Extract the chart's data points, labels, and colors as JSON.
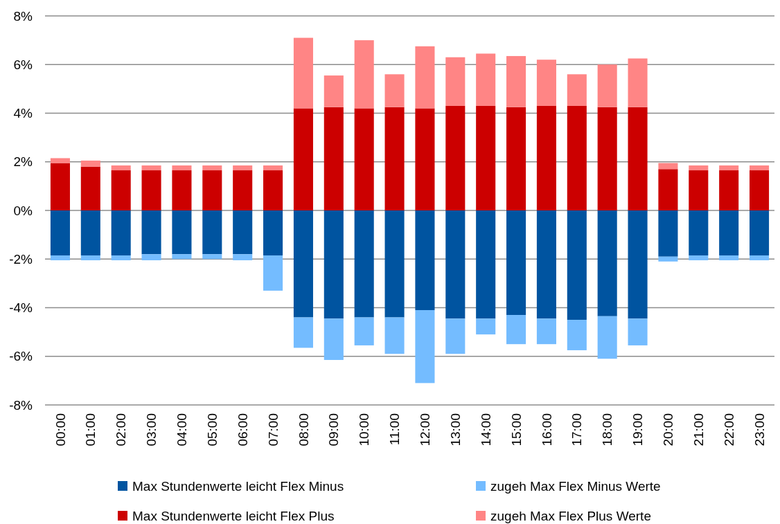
{
  "chart_data": {
    "type": "bar",
    "stacked": true,
    "categories": [
      "00:00",
      "01:00",
      "02:00",
      "03:00",
      "04:00",
      "05:00",
      "06:00",
      "07:00",
      "08:00",
      "09:00",
      "10:00",
      "11:00",
      "12:00",
      "13:00",
      "14:00",
      "15:00",
      "16:00",
      "17:00",
      "18:00",
      "19:00",
      "20:00",
      "21:00",
      "22:00",
      "23:00"
    ],
    "series": [
      {
        "name": "Max Stundenwerte leicht Flex Minus",
        "color": "#0054a0",
        "values": [
          -1.85,
          -1.85,
          -1.85,
          -1.8,
          -1.8,
          -1.8,
          -1.8,
          -1.85,
          -4.4,
          -4.45,
          -4.4,
          -4.4,
          -4.1,
          -4.45,
          -4.45,
          -4.3,
          -4.45,
          -4.5,
          -4.35,
          -4.45,
          -1.9,
          -1.85,
          -1.85,
          -1.85
        ]
      },
      {
        "name": "zugeh Max Flex Minus Werte",
        "color": "#74bcff",
        "values": [
          -0.2,
          -0.2,
          -0.2,
          -0.25,
          -0.2,
          -0.2,
          -0.25,
          -1.45,
          -1.25,
          -1.7,
          -1.15,
          -1.5,
          -3.0,
          -1.45,
          -0.65,
          -1.2,
          -1.05,
          -1.25,
          -1.75,
          -1.1,
          -0.2,
          -0.2,
          -0.2,
          -0.2
        ]
      },
      {
        "name": "Max Stundenwerte leicht Flex Plus",
        "color": "#cc0000",
        "values": [
          1.95,
          1.8,
          1.65,
          1.65,
          1.65,
          1.65,
          1.65,
          1.65,
          4.2,
          4.25,
          4.2,
          4.25,
          4.2,
          4.3,
          4.3,
          4.25,
          4.3,
          4.3,
          4.25,
          4.25,
          1.7,
          1.65,
          1.65,
          1.65
        ]
      },
      {
        "name": "zugeh Max Flex Plus Werte",
        "color": "#ff8585",
        "values": [
          0.2,
          0.25,
          0.2,
          0.2,
          0.2,
          0.2,
          0.2,
          0.2,
          2.9,
          1.3,
          2.8,
          1.35,
          2.55,
          2.0,
          2.15,
          2.1,
          1.9,
          1.3,
          1.75,
          2.0,
          0.25,
          0.2,
          0.2,
          0.2
        ]
      }
    ],
    "ylim": [
      -8,
      8
    ],
    "yticks": [
      {
        "value": -8,
        "label": "-8%"
      },
      {
        "value": -6,
        "label": "-6%"
      },
      {
        "value": -4,
        "label": "-4%"
      },
      {
        "value": -2,
        "label": "-2%"
      },
      {
        "value": 0,
        "label": "0%"
      },
      {
        "value": 2,
        "label": "2%"
      },
      {
        "value": 4,
        "label": "4%"
      },
      {
        "value": 6,
        "label": "6%"
      },
      {
        "value": 8,
        "label": "8%"
      }
    ],
    "grid": "y",
    "legend": "bottom"
  }
}
